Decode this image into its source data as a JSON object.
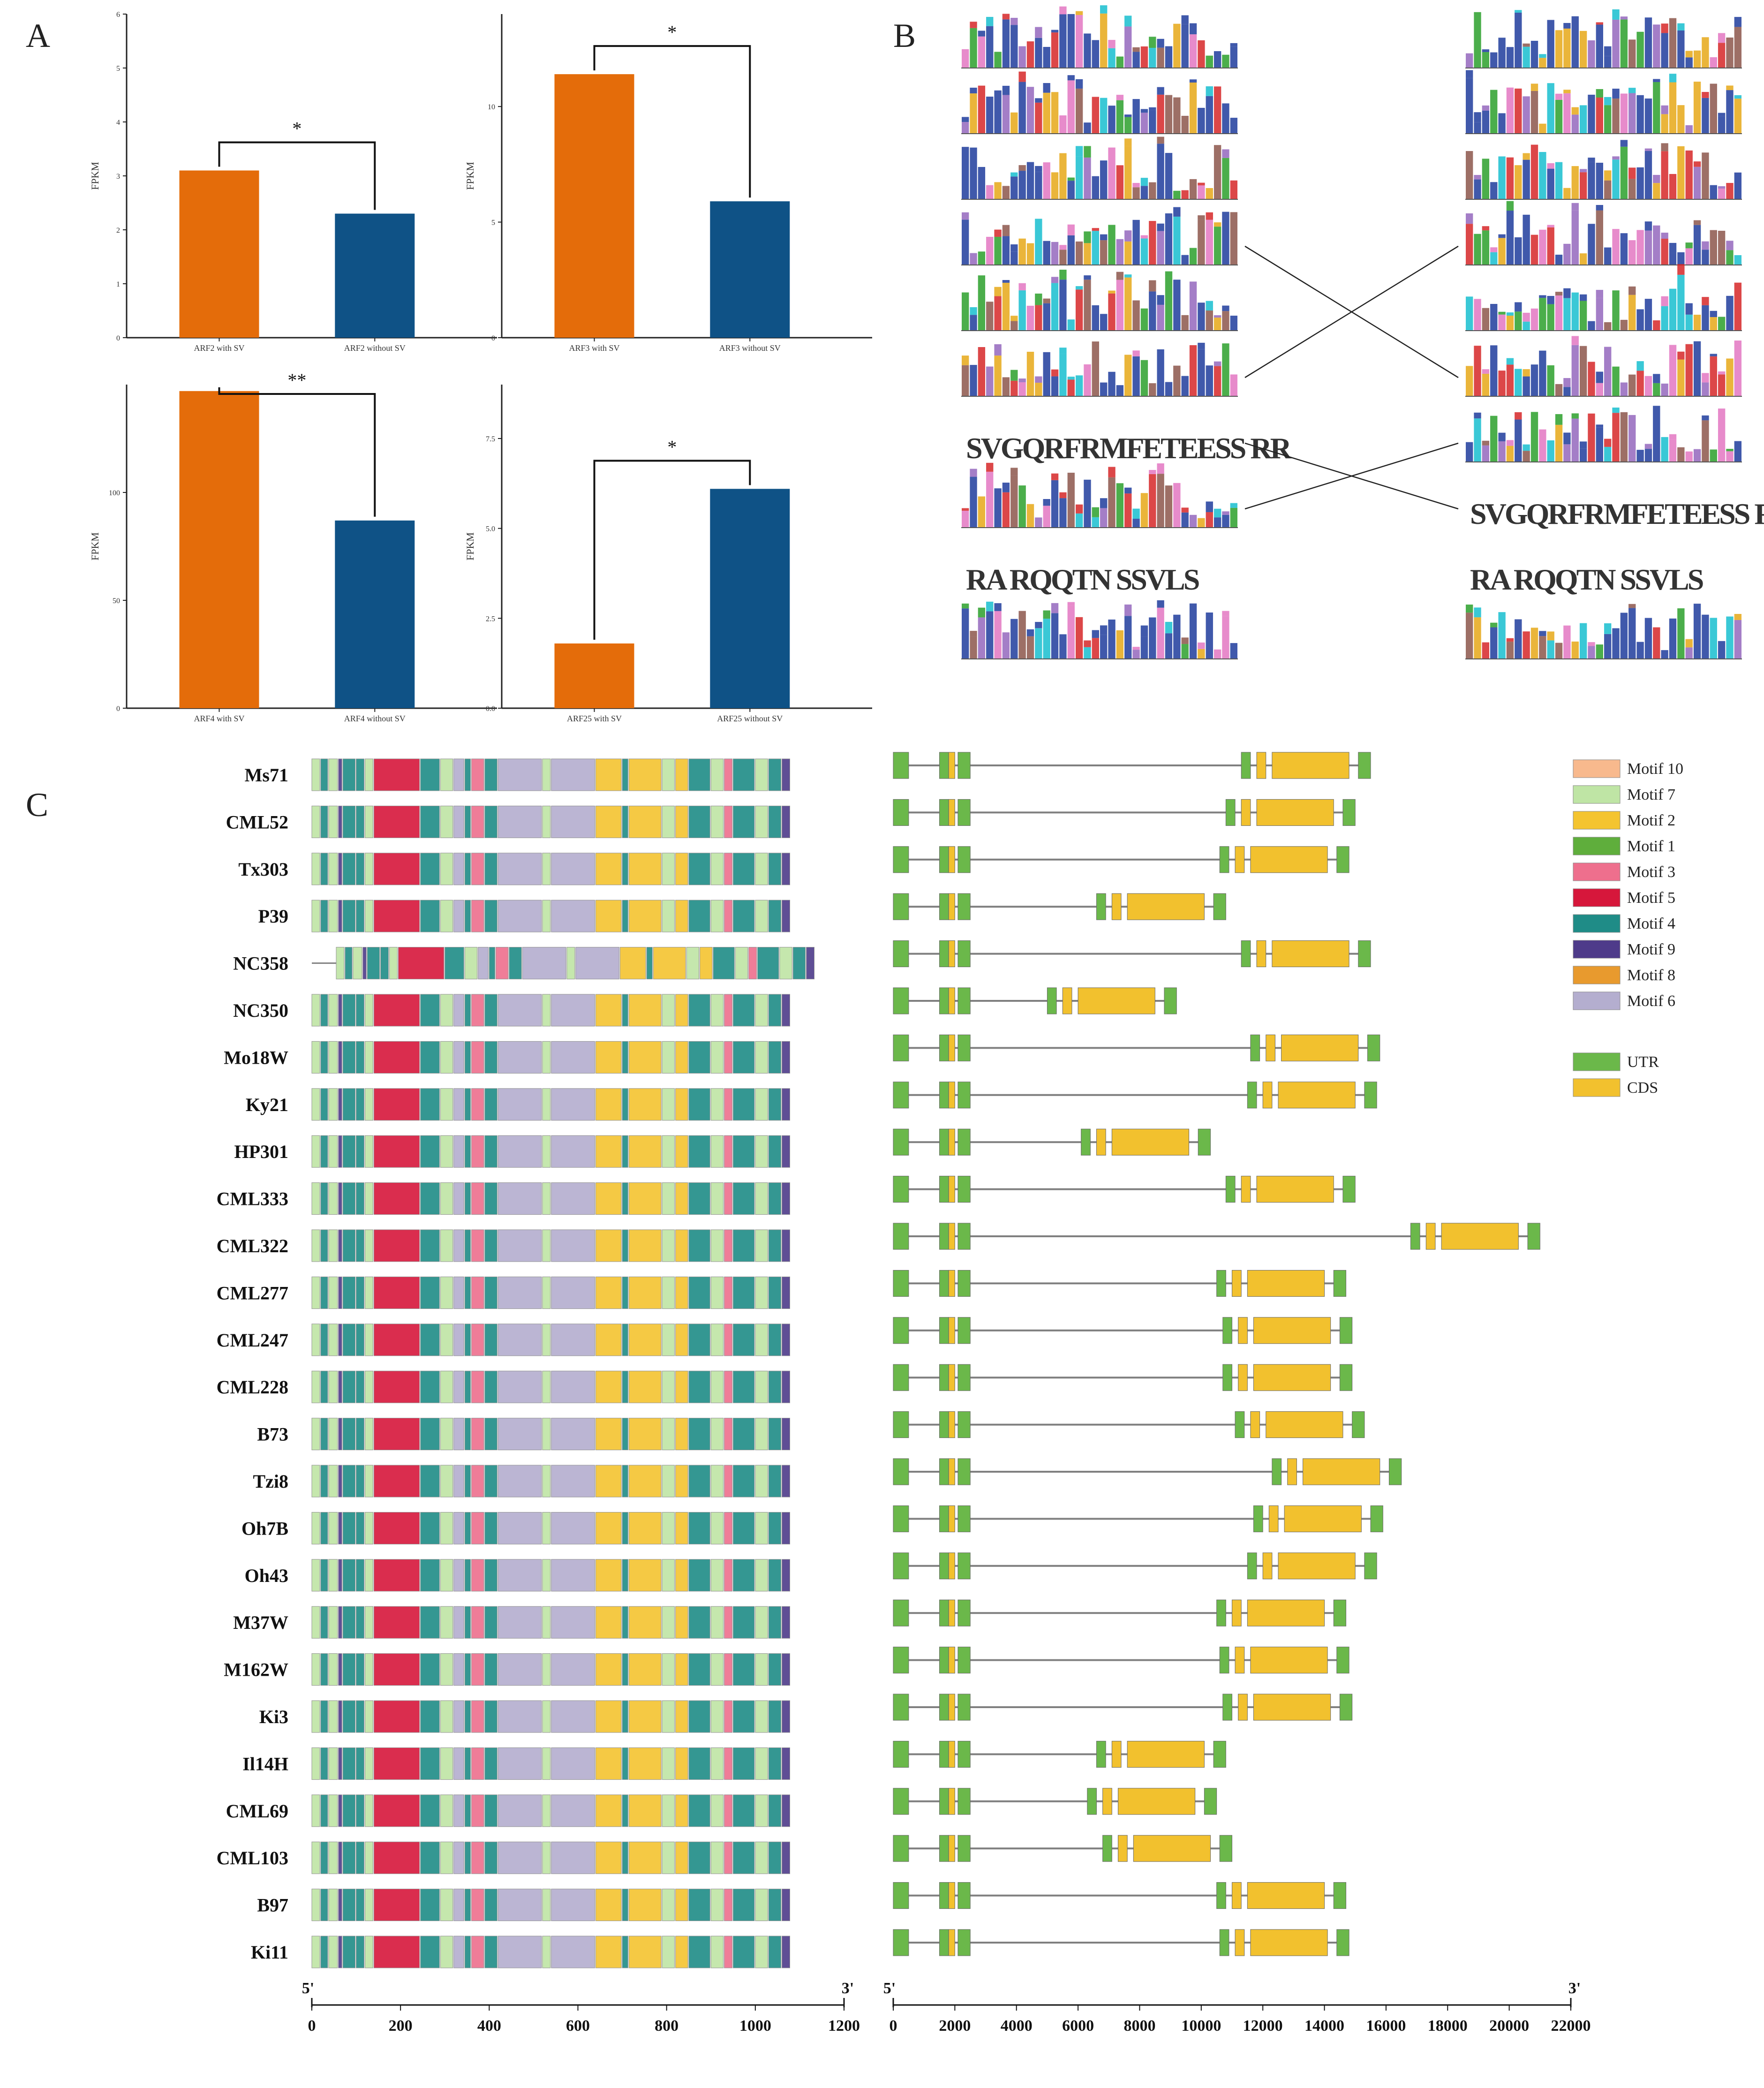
{
  "panels": {
    "a": "A",
    "b": "B",
    "c": "C"
  },
  "colors": {
    "with_sv": "#E46C0A",
    "without_sv": "#0F5286",
    "axis": "#222222",
    "intron": "#7f7f7f",
    "motif": {
      "Motif 10": "#F8B98D",
      "Motif 7": "#BFE5A5",
      "Motif 2": "#F4C430",
      "Motif 1": "#5FAE3C",
      "Motif 3": "#EE6F8D",
      "Motif 5": "#D6173B",
      "Motif 4": "#1F8C87",
      "Motif 9": "#4E3B8A",
      "Motif 8": "#E89A2E",
      "Motif 6": "#B4AECF"
    },
    "utr": "#6BB84A",
    "cds": "#F2C12E"
  },
  "chart_data": [
    {
      "type": "bar",
      "id": "arf2",
      "categories": [
        "ARF2 with SV",
        "ARF2 without SV"
      ],
      "values": [
        3.1,
        2.3
      ],
      "ylabel": "FPKM",
      "ylim": [
        0,
        6
      ],
      "yticks": [
        "0",
        "1",
        "2",
        "3",
        "4",
        "5",
        "6"
      ],
      "significance": "*",
      "bracket_up": true
    },
    {
      "type": "bar",
      "id": "arf3",
      "categories": [
        "ARF3 with SV",
        "ARF3 without SV"
      ],
      "values": [
        11.4,
        5.9
      ],
      "ylabel": "FPKM",
      "ylim": [
        0,
        14
      ],
      "yticks": [
        "0",
        "5",
        "10"
      ],
      "significance": "*",
      "bracket_up": true
    },
    {
      "type": "bar",
      "id": "arf4",
      "categories": [
        "ARF4 with SV",
        "ARF4 without SV"
      ],
      "values": [
        147,
        87
      ],
      "ylabel": "FPKM",
      "ylim": [
        0,
        150
      ],
      "yticks": [
        "0",
        "50",
        "100"
      ],
      "significance": "**",
      "bracket_up": true
    },
    {
      "type": "bar",
      "id": "arf25",
      "categories": [
        "ARF25 with SV",
        "ARF25 without SV"
      ],
      "values": [
        1.8,
        6.1
      ],
      "ylabel": "FPKM",
      "ylim": [
        0,
        9
      ],
      "yticks": [
        "0.0",
        "2.5",
        "5.0",
        "7.5"
      ],
      "significance": "*",
      "bracket_up": false
    },
    {
      "type": "gene_structure",
      "id": "panel-c",
      "accessions": [
        "Ms71",
        "CML52",
        "Tx303",
        "P39",
        "NC358",
        "NC350",
        "Mo18W",
        "Ky21",
        "HP301",
        "CML333",
        "CML322",
        "CML277",
        "CML247",
        "CML228",
        "B73",
        "Tzi8",
        "Oh7B",
        "Oh43",
        "M37W",
        "M162W",
        "Ki3",
        "Il14H",
        "CML69",
        "CML103",
        "B97",
        "Ki11"
      ],
      "gene_length_bp": [
        15500,
        15000,
        14800,
        10800,
        15500,
        9200,
        15800,
        15700,
        10300,
        15000,
        21000,
        14700,
        14900,
        14900,
        15300,
        16500,
        15900,
        15700,
        14700,
        14800,
        14900,
        10800,
        10500,
        11000,
        14700,
        14800
      ],
      "motif_legend": [
        "Motif 10",
        "Motif 7",
        "Motif 2",
        "Motif 1",
        "Motif 3",
        "Motif 5",
        "Motif 4",
        "Motif 9",
        "Motif 8",
        "Motif 6"
      ],
      "feature_legend": [
        "UTR",
        "CDS"
      ],
      "protein_axis": {
        "start_label": "5'",
        "end_label": "3'",
        "range": [
          0,
          1200
        ],
        "ticks": [
          "0",
          "200",
          "400",
          "600",
          "800",
          "1000",
          "1200"
        ]
      },
      "gene_axis": {
        "start_label": "5'",
        "end_label": "3'",
        "range": [
          0,
          22000
        ],
        "ticks": [
          "0",
          "2000",
          "4000",
          "6000",
          "8000",
          "10000",
          "12000",
          "14000",
          "16000",
          "18000",
          "20000",
          "22000"
        ]
      }
    }
  ],
  "panel_b": {
    "left_rows": [
      "motif",
      "motif",
      "motif",
      "motif",
      "motif",
      "motif",
      "short",
      "motif",
      "short",
      "motif"
    ],
    "right_rows": [
      "motif",
      "motif",
      "motif",
      "motif",
      "motif",
      "motif",
      "motif",
      "short",
      "short",
      "motif"
    ],
    "short_texts": [
      "SVGQRFRMFETEESS RR",
      "RA RQQTN SSVLS",
      "SVGQRFRMFETEESS RR",
      "RA RQQTN SSVLS"
    ],
    "crossings": [
      [
        3,
        5
      ],
      [
        5,
        3
      ],
      [
        6,
        7
      ],
      [
        7,
        6
      ]
    ]
  }
}
